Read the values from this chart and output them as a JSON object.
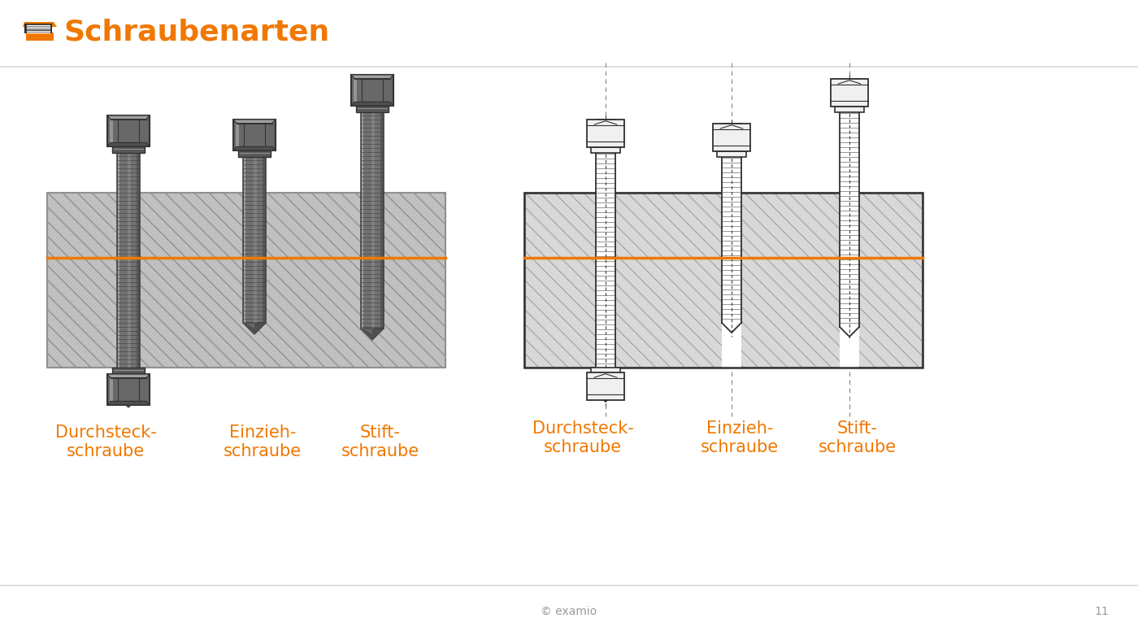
{
  "title": "Schraubenarten",
  "title_color": "#F07800",
  "bg_color": "#F5F5F5",
  "footer_text": "© examio",
  "footer_page": "11",
  "footer_color": "#999999",
  "orange_line_color": "#F07800",
  "label_color": "#F07800",
  "labels": [
    "Durchsteck-\nschraube",
    "Einzieh-\nschraube",
    "Stift-\nschraube"
  ],
  "block_fill": "#C0C0C0",
  "block_hatch": "#909090",
  "screw_mid": "#707070",
  "screw_dark": "#444444",
  "screw_light": "#B0B0B0",
  "screw_highlight": "#D8D8D8",
  "nut_mid": "#686868",
  "nut_dark": "#333333",
  "nut_light": "#A0A0A0",
  "washer_color": "#585858",
  "tip_color": "#505050",
  "sch_line": "#303030",
  "sch_block_fill": "#D8D8D8",
  "sch_block_hatch": "#A0A0A0",
  "sch_screw_fill": "#FFFFFF",
  "sch_nut_fill": "#F0F0F0"
}
